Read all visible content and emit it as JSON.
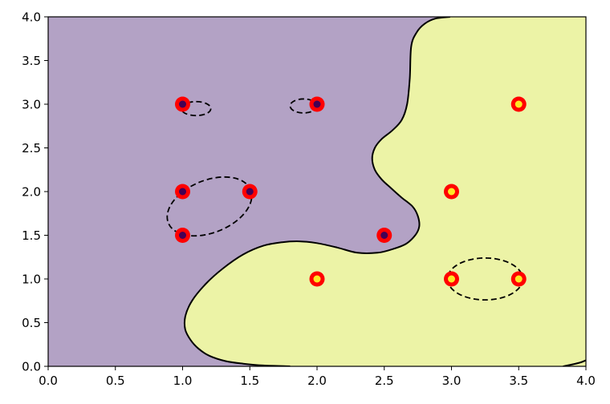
{
  "chart_data": {
    "type": "scatter",
    "title": "",
    "xlabel": "",
    "ylabel": "",
    "xlim": [
      0,
      4
    ],
    "ylim": [
      0,
      4
    ],
    "grid": false,
    "x_ticks": [
      "0.0",
      "0.5",
      "1.0",
      "1.5",
      "2.0",
      "2.5",
      "3.0",
      "3.5",
      "4.0"
    ],
    "y_ticks": [
      "0.0",
      "0.5",
      "1.0",
      "1.5",
      "2.0",
      "2.5",
      "3.0",
      "3.5",
      "4.0"
    ],
    "region_colors": {
      "class_0": "#b3a2c5",
      "class_1": "#ecf3a6"
    },
    "boundary_color": "#000000",
    "support_vector_color": "#ff0000",
    "class_colors": {
      "class_0": "#440154",
      "class_1": "#fde725"
    },
    "points": [
      {
        "x": 1.0,
        "y": 3.0,
        "class": 0,
        "support_vector": true
      },
      {
        "x": 2.0,
        "y": 3.0,
        "class": 0,
        "support_vector": true
      },
      {
        "x": 1.0,
        "y": 2.0,
        "class": 0,
        "support_vector": true
      },
      {
        "x": 1.5,
        "y": 2.0,
        "class": 0,
        "support_vector": true
      },
      {
        "x": 1.0,
        "y": 1.5,
        "class": 0,
        "support_vector": true
      },
      {
        "x": 2.5,
        "y": 1.5,
        "class": 0,
        "support_vector": true
      },
      {
        "x": 3.5,
        "y": 3.0,
        "class": 1,
        "support_vector": true
      },
      {
        "x": 3.0,
        "y": 2.0,
        "class": 1,
        "support_vector": true
      },
      {
        "x": 2.0,
        "y": 1.0,
        "class": 1,
        "support_vector": true
      },
      {
        "x": 3.0,
        "y": 1.0,
        "class": 1,
        "support_vector": true
      },
      {
        "x": 3.5,
        "y": 1.0,
        "class": 1,
        "support_vector": true
      }
    ],
    "decision_boundary": [
      [
        2.99,
        4.0
      ],
      [
        2.88,
        3.98
      ],
      [
        2.8,
        3.92
      ],
      [
        2.74,
        3.82
      ],
      [
        2.7,
        3.66
      ],
      [
        2.69,
        3.3
      ],
      [
        2.67,
        3.0
      ],
      [
        2.63,
        2.82
      ],
      [
        2.56,
        2.7
      ],
      [
        2.48,
        2.6
      ],
      [
        2.43,
        2.5
      ],
      [
        2.41,
        2.38
      ],
      [
        2.43,
        2.25
      ],
      [
        2.48,
        2.14
      ],
      [
        2.55,
        2.04
      ],
      [
        2.63,
        1.93
      ],
      [
        2.71,
        1.83
      ],
      [
        2.75,
        1.72
      ],
      [
        2.76,
        1.6
      ],
      [
        2.73,
        1.5
      ],
      [
        2.66,
        1.4
      ],
      [
        2.56,
        1.34
      ],
      [
        2.45,
        1.3
      ],
      [
        2.3,
        1.3
      ],
      [
        2.15,
        1.36
      ],
      [
        2.0,
        1.41
      ],
      [
        1.87,
        1.43
      ],
      [
        1.74,
        1.42
      ],
      [
        1.6,
        1.38
      ],
      [
        1.45,
        1.28
      ],
      [
        1.3,
        1.12
      ],
      [
        1.17,
        0.94
      ],
      [
        1.07,
        0.75
      ],
      [
        1.02,
        0.57
      ],
      [
        1.02,
        0.42
      ],
      [
        1.06,
        0.3
      ],
      [
        1.12,
        0.2
      ],
      [
        1.2,
        0.12
      ],
      [
        1.32,
        0.06
      ],
      [
        1.45,
        0.03
      ],
      [
        1.6,
        0.01
      ],
      [
        1.8,
        0.0
      ]
    ],
    "decision_boundary_tail": [
      [
        3.83,
        0.0
      ],
      [
        3.95,
        0.04
      ],
      [
        4.0,
        0.07
      ]
    ],
    "margin_ellipses": [
      {
        "cx": 1.1,
        "cy": 2.95,
        "rx": 0.11,
        "ry": 0.08,
        "angle": 0
      },
      {
        "cx": 1.9,
        "cy": 2.98,
        "rx": 0.1,
        "ry": 0.08,
        "angle": 0
      },
      {
        "cx": 1.2,
        "cy": 1.83,
        "rx": 0.33,
        "ry": 0.3,
        "angle": -22
      },
      {
        "cx": 3.25,
        "cy": 1.0,
        "rx": 0.28,
        "ry": 0.24,
        "angle": 0
      }
    ]
  }
}
